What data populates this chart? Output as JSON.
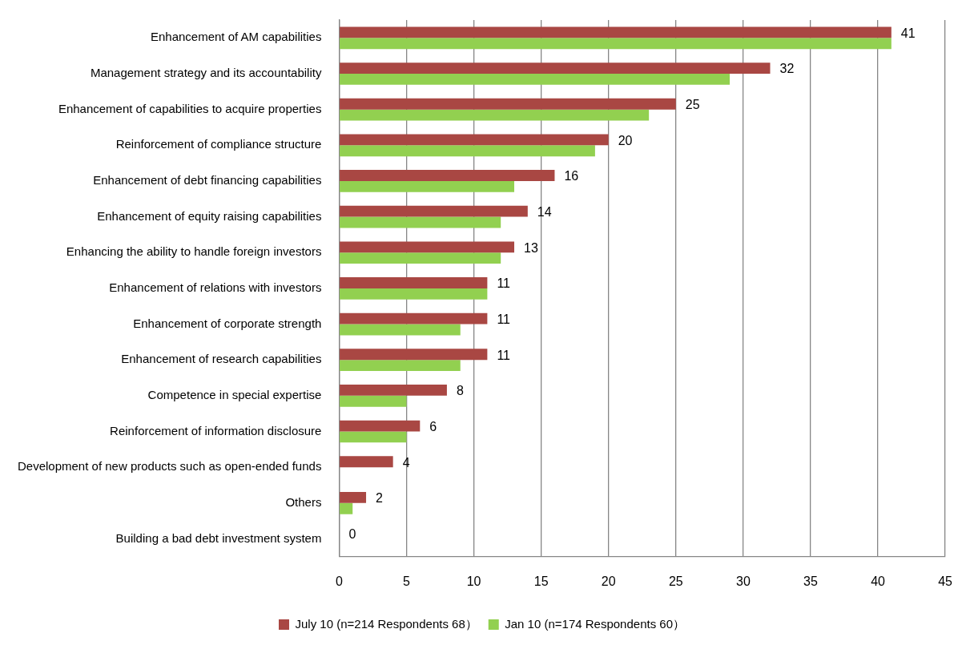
{
  "chart_data": {
    "type": "bar",
    "orientation": "horizontal",
    "categories": [
      "Enhancement of AM capabilities",
      "Management strategy and its accountability",
      "Enhancement of capabilities to acquire properties",
      "Reinforcement of compliance structure",
      "Enhancement of debt financing capabilities",
      "Enhancement of equity raising capabilities",
      "Enhancing the ability to handle foreign investors",
      "Enhancement of relations with investors",
      "Enhancement of corporate strength",
      "Enhancement of research capabilities",
      "Competence in special expertise",
      "Reinforcement of information disclosure",
      "Development of new products such as open-ended funds",
      "Others",
      "Building a bad debt investment system"
    ],
    "series": [
      {
        "name": "July 10 (n=214 Respondents 68）",
        "color": "#a94743",
        "values": [
          41,
          32,
          25,
          20,
          16,
          14,
          13,
          11,
          11,
          11,
          8,
          6,
          4,
          2,
          0
        ],
        "value_labels": [
          "41",
          "32",
          "25",
          "20",
          "16",
          "14",
          "13",
          "11",
          "11",
          "11",
          "8",
          "6",
          "4",
          "2",
          "0"
        ]
      },
      {
        "name": "Jan 10 (n=174 Respondents 60）",
        "color": "#92d050",
        "values": [
          41,
          29,
          23,
          19,
          13,
          12,
          12,
          11,
          9,
          9,
          5,
          5,
          0,
          1,
          0
        ]
      }
    ],
    "xlim": [
      0,
      45
    ],
    "xticks": [
      0,
      5,
      10,
      15,
      20,
      25,
      30,
      35,
      40,
      45
    ],
    "grid": "x",
    "legend": "bottom"
  }
}
